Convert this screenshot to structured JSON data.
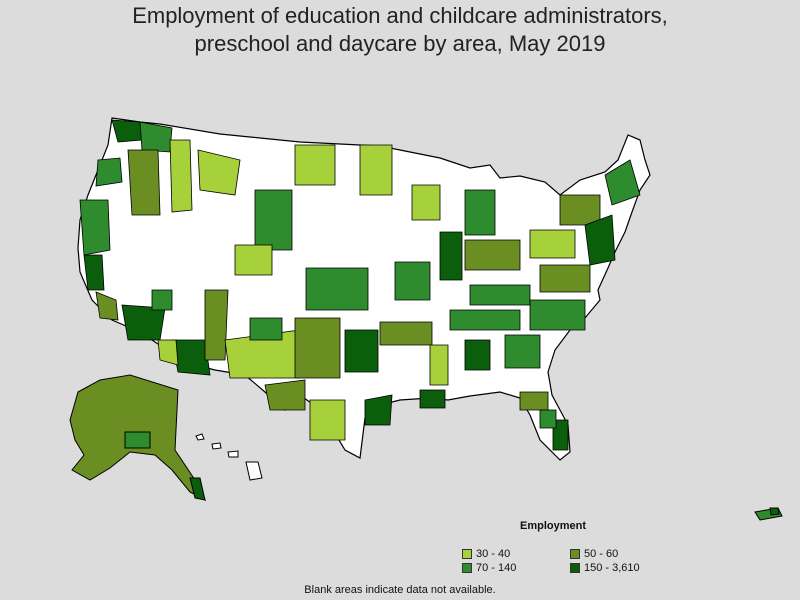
{
  "title": {
    "line1": "Employment of education and childcare administrators,",
    "line2": "preschool and daycare by area, May 2019"
  },
  "legend": {
    "title": "Employment",
    "items": [
      {
        "label": "30 - 40",
        "color": "#a6d13a"
      },
      {
        "label": "50 - 60",
        "color": "#6b8e23"
      },
      {
        "label": "70 - 140",
        "color": "#2e8b2e"
      },
      {
        "label": "150 - 3,610",
        "color": "#0b5e0b"
      }
    ]
  },
  "footnote": "Blank areas indicate data not available.",
  "colors": {
    "background": "#dcdcdc",
    "no_data": "#ffffff",
    "border": "#000000"
  }
}
